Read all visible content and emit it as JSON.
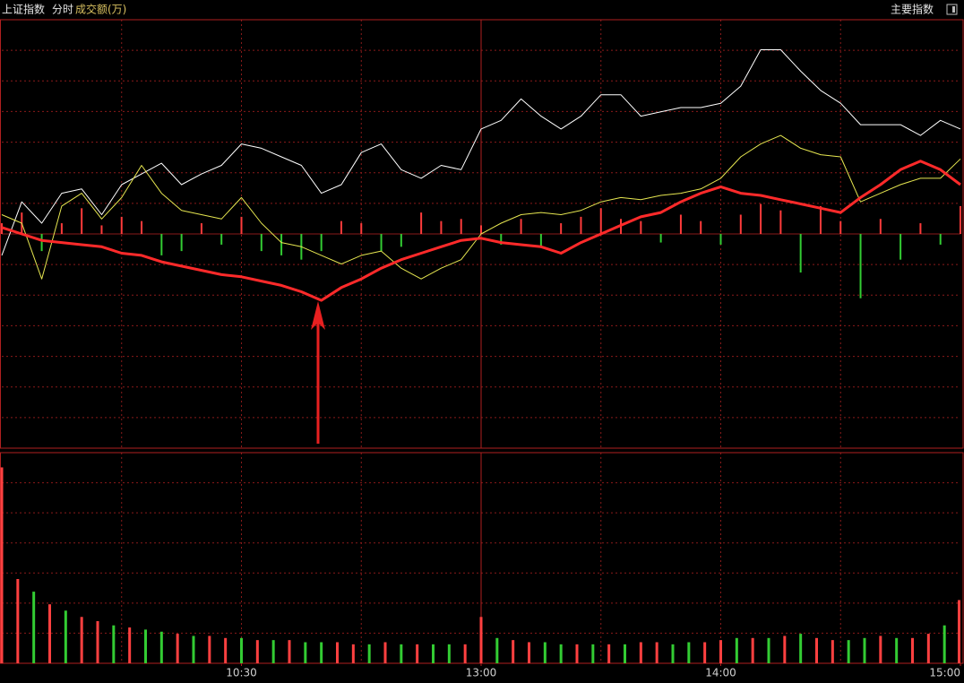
{
  "header": {
    "title": "上证指数",
    "mode": "分时",
    "indicator": "成交额(万)",
    "menu": "主要指数"
  },
  "chart_data": [
    {
      "type": "line",
      "xlim": [
        0,
        240
      ],
      "ylim": [
        -1,
        1
      ],
      "grid_rows": 14,
      "xgrid": [
        30,
        60,
        90,
        120,
        150,
        180,
        210
      ],
      "x": [
        0,
        5,
        10,
        15,
        20,
        25,
        30,
        35,
        40,
        45,
        50,
        55,
        60,
        65,
        70,
        75,
        80,
        85,
        90,
        95,
        100,
        105,
        110,
        115,
        120,
        125,
        130,
        135,
        140,
        145,
        150,
        155,
        160,
        165,
        170,
        175,
        180,
        185,
        190,
        195,
        200,
        205,
        210,
        215,
        220,
        225,
        230,
        235,
        240
      ],
      "series": [
        {
          "color": "#ffffff",
          "width": 1,
          "values": [
            -0.1,
            0.15,
            0.05,
            0.19,
            0.21,
            0.09,
            0.23,
            0.28,
            0.33,
            0.23,
            0.28,
            0.32,
            0.42,
            0.4,
            0.36,
            0.32,
            0.19,
            0.23,
            0.38,
            0.42,
            0.3,
            0.26,
            0.32,
            0.3,
            0.49,
            0.53,
            0.63,
            0.55,
            0.49,
            0.55,
            0.65,
            0.65,
            0.55,
            0.57,
            0.59,
            0.59,
            0.61,
            0.69,
            0.86,
            0.86,
            0.76,
            0.67,
            0.61,
            0.51,
            0.51,
            0.51,
            0.46,
            0.53,
            0.49
          ]
        },
        {
          "color": "#e6e650",
          "width": 1,
          "values": [
            0.09,
            0.05,
            -0.21,
            0.13,
            0.19,
            0.07,
            0.17,
            0.32,
            0.19,
            0.11,
            0.09,
            0.07,
            0.17,
            0.05,
            -0.04,
            -0.06,
            -0.1,
            -0.14,
            -0.1,
            -0.08,
            -0.16,
            -0.21,
            -0.16,
            -0.12,
            0,
            0.05,
            0.09,
            0.1,
            0.09,
            0.11,
            0.15,
            0.17,
            0.16,
            0.18,
            0.19,
            0.21,
            0.26,
            0.36,
            0.42,
            0.46,
            0.4,
            0.37,
            0.36,
            0.15,
            0.19,
            0.23,
            0.26,
            0.26,
            0.35
          ]
        },
        {
          "color": "#ff2a2a",
          "width": 3,
          "values": [
            0.03,
            0,
            -0.03,
            -0.04,
            -0.05,
            -0.06,
            -0.09,
            -0.1,
            -0.13,
            -0.15,
            -0.17,
            -0.19,
            -0.2,
            -0.22,
            -0.24,
            -0.27,
            -0.31,
            -0.25,
            -0.21,
            -0.16,
            -0.12,
            -0.09,
            -0.06,
            -0.03,
            -0.02,
            -0.04,
            -0.05,
            -0.06,
            -0.09,
            -0.04,
            0,
            0.04,
            0.08,
            0.1,
            0.15,
            0.19,
            0.22,
            0.19,
            0.18,
            0.16,
            0.14,
            0.12,
            0.1,
            0.17,
            0.23,
            0.3,
            0.34,
            0.3,
            0.23
          ]
        }
      ],
      "diff": {
        "color_up": "#ff3b3b",
        "color_down": "#33cc33",
        "values": [
          0.05,
          0.1,
          -0.08,
          0.05,
          0.12,
          0.04,
          0.08,
          0.06,
          -0.1,
          -0.08,
          0.05,
          -0.05,
          0.08,
          -0.08,
          -0.1,
          -0.12,
          -0.08,
          0.06,
          0.05,
          -0.08,
          -0.06,
          0.1,
          0.06,
          0.07,
          0.04,
          -0.05,
          0.07,
          -0.06,
          0.05,
          0.08,
          0.12,
          0.07,
          0.06,
          -0.04,
          0.09,
          0.06,
          -0.05,
          0.09,
          0.14,
          0.11,
          -0.18,
          0.13,
          0.06,
          -0.3,
          0.07,
          -0.12,
          0.05,
          -0.05,
          0.13
        ]
      }
    },
    {
      "type": "bar",
      "xlim": [
        0,
        240
      ],
      "ylim": [
        0,
        100
      ],
      "grid_rows": 7,
      "xgrid": [
        30,
        60,
        90,
        120,
        150,
        180,
        210
      ],
      "xticks": [
        {
          "value": 60,
          "label": "10:30"
        },
        {
          "value": 120,
          "label": "13:00"
        },
        {
          "value": 180,
          "label": "14:00"
        },
        {
          "value": 240,
          "label": "15:00"
        }
      ],
      "color_up": "#ff4040",
      "color_down": "#33cc33",
      "x": [
        0,
        4,
        8,
        12,
        16,
        20,
        24,
        28,
        32,
        36,
        40,
        44,
        48,
        52,
        56,
        60,
        64,
        68,
        72,
        76,
        80,
        84,
        88,
        92,
        96,
        100,
        104,
        108,
        112,
        116,
        120,
        124,
        128,
        132,
        136,
        140,
        144,
        148,
        152,
        156,
        160,
        164,
        168,
        172,
        176,
        180,
        184,
        188,
        192,
        196,
        200,
        204,
        208,
        212,
        216,
        220,
        224,
        228,
        232,
        236,
        240
      ],
      "values": [
        93,
        40,
        34,
        28,
        25,
        22,
        20,
        18,
        17,
        16,
        15,
        14,
        13,
        13,
        12,
        12,
        11,
        11,
        11,
        10,
        10,
        10,
        9,
        9,
        10,
        9,
        9,
        9,
        9,
        9,
        22,
        12,
        11,
        10,
        10,
        9,
        9,
        9,
        9,
        9,
        10,
        10,
        9,
        10,
        10,
        11,
        12,
        12,
        12,
        13,
        14,
        12,
        11,
        11,
        12,
        13,
        12,
        12,
        14,
        18,
        30
      ],
      "up": [
        1,
        1,
        0,
        1,
        0,
        1,
        1,
        0,
        1,
        0,
        0,
        1,
        0,
        1,
        1,
        0,
        1,
        0,
        1,
        0,
        0,
        1,
        1,
        0,
        1,
        0,
        1,
        0,
        0,
        1,
        1,
        0,
        1,
        1,
        0,
        0,
        1,
        0,
        1,
        0,
        1,
        1,
        0,
        0,
        1,
        1,
        0,
        1,
        0,
        1,
        0,
        1,
        1,
        0,
        0,
        1,
        0,
        1,
        1,
        0,
        1
      ]
    }
  ]
}
